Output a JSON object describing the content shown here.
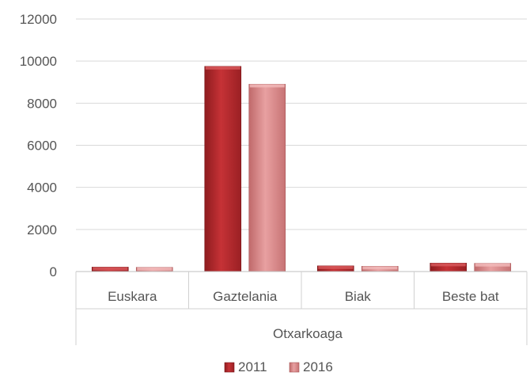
{
  "chart_data": {
    "type": "bar",
    "title": "",
    "xlabel": "",
    "ylabel": "",
    "ylim": [
      0,
      12000
    ],
    "yticks": [
      0,
      2000,
      4000,
      6000,
      8000,
      10000,
      12000
    ],
    "grid": true,
    "legend_position": "bottom",
    "group_label": "Otxarkoaga",
    "categories": [
      "Euskara",
      "Gaztelania",
      "Biak",
      "Beste bat"
    ],
    "series": [
      {
        "name": "2011",
        "color": "#b8282c",
        "values": [
          210,
          9750,
          270,
          400
        ]
      },
      {
        "name": "2016",
        "color": "#d98585",
        "values": [
          200,
          8900,
          250,
          390
        ]
      }
    ]
  }
}
